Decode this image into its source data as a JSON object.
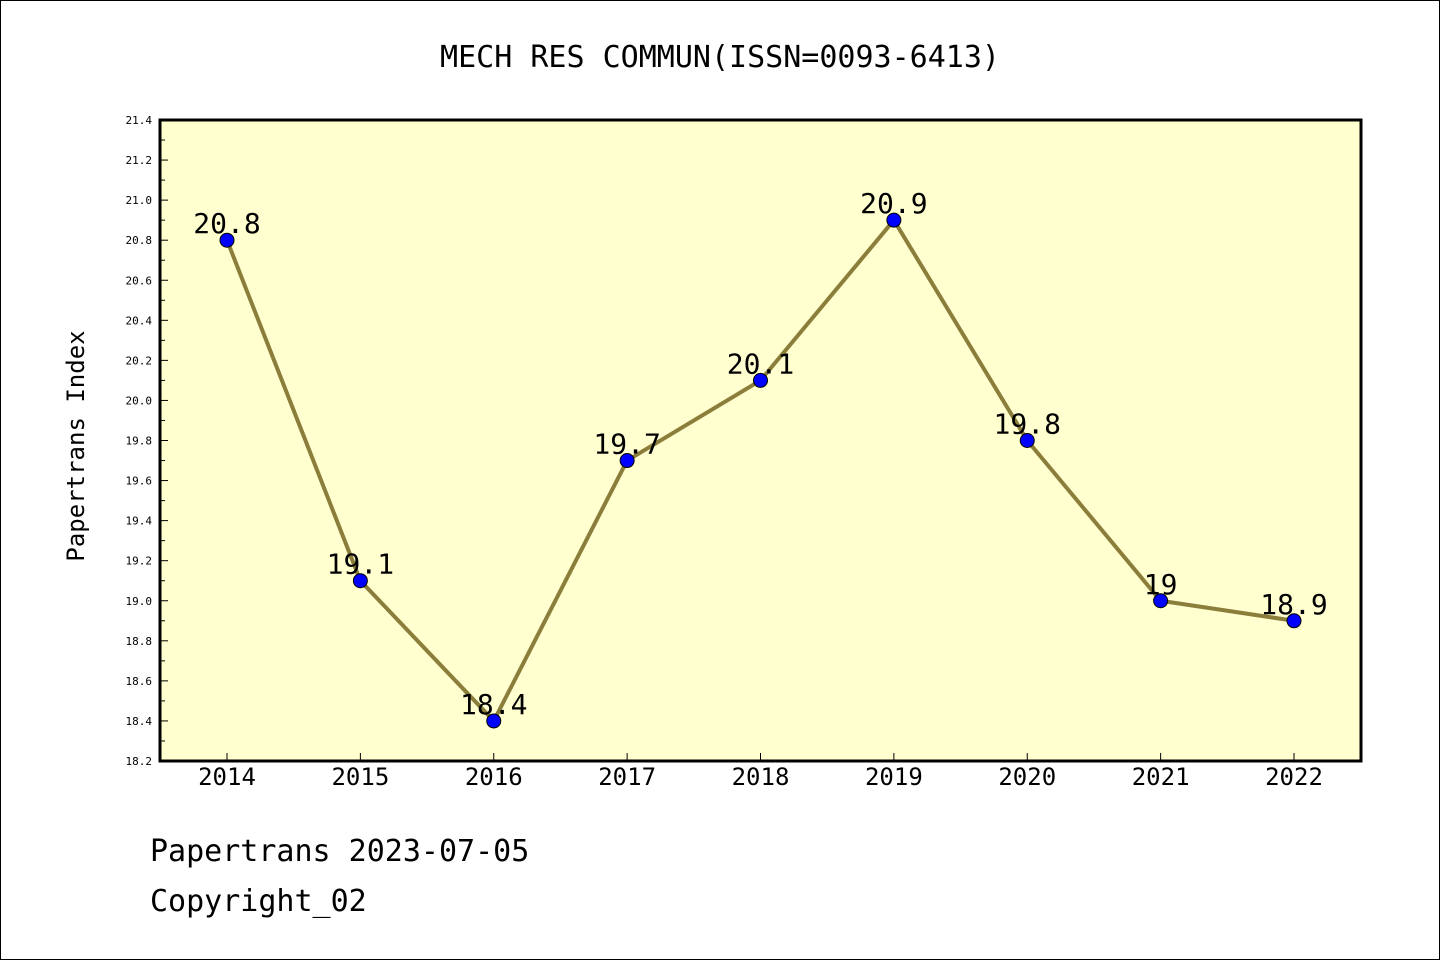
{
  "footer": {
    "line1": "Papertrans 2023-07-05",
    "line2": "Copyright_02"
  },
  "chart_data": {
    "type": "line",
    "title": "MECH RES COMMUN(ISSN=0093-6413)",
    "xlabel": "",
    "ylabel": "Papertrans Index",
    "categories": [
      "2014",
      "2015",
      "2016",
      "2017",
      "2018",
      "2019",
      "2020",
      "2021",
      "2022"
    ],
    "series": [
      {
        "values": [
          20.8,
          19.1,
          18.4,
          19.7,
          20.1,
          20.9,
          19.8,
          19.0,
          18.9
        ],
        "data_labels": [
          "20.8",
          "19.1",
          "18.4",
          "19.7",
          "20.1",
          "20.9",
          "19.8",
          "19",
          "18.9"
        ]
      }
    ],
    "ylim": [
      18.2,
      21.4
    ],
    "yticks": [
      "18.2",
      "18.4",
      "18.6",
      "18.8",
      "19.0",
      "19.2",
      "19.4",
      "19.6",
      "19.8",
      "20.0",
      "20.2",
      "20.4",
      "20.6",
      "20.8",
      "21.0",
      "21.2",
      "21.4"
    ],
    "grid": false,
    "colors": {
      "plot_background": "#ffffd0",
      "line": "#8b7d3a",
      "marker": "#0000ff"
    }
  }
}
